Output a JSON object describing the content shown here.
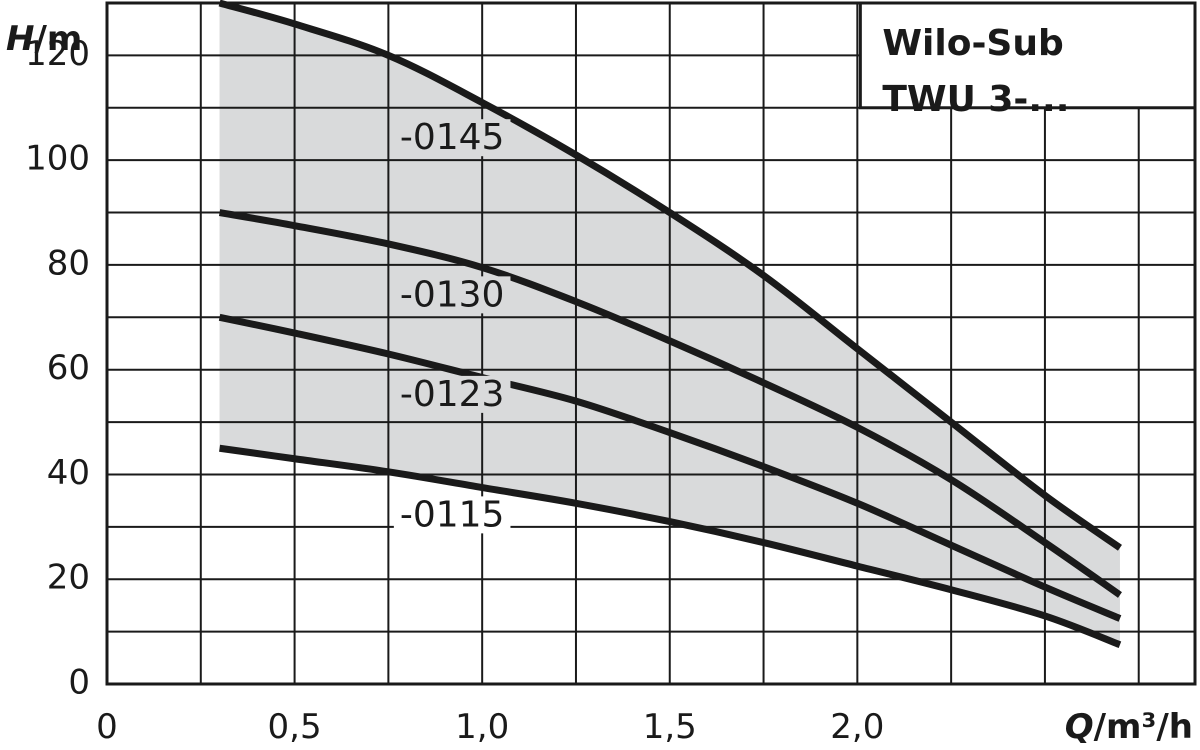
{
  "chart_data": {
    "type": "line",
    "title": [
      "Wilo-Sub",
      "TWU 3-..."
    ],
    "ylabel": {
      "symbol": "H",
      "unit": "/m"
    },
    "xlabel": {
      "symbol": "Q",
      "unit": "/m³/h"
    },
    "xlim": [
      0,
      2.9
    ],
    "ylim": [
      0,
      130
    ],
    "x_grid_step": 0.25,
    "y_grid_step": 10,
    "x_ticks": [
      {
        "value": 0,
        "label": "0"
      },
      {
        "value": 0.5,
        "label": "0,5"
      },
      {
        "value": 1.0,
        "label": "1,0"
      },
      {
        "value": 1.5,
        "label": "1,5"
      },
      {
        "value": 2.0,
        "label": "2,0"
      }
    ],
    "y_ticks": [
      {
        "value": 0,
        "label": "0"
      },
      {
        "value": 20,
        "label": "20"
      },
      {
        "value": 40,
        "label": "40"
      },
      {
        "value": 60,
        "label": "60"
      },
      {
        "value": 80,
        "label": "80"
      },
      {
        "value": 100,
        "label": "100"
      },
      {
        "value": 120,
        "label": "120"
      }
    ],
    "grid": true,
    "fill_between": [
      "-0145",
      "-0115"
    ],
    "fill_color": "#d9dadb",
    "line_color": "#1a1a1a",
    "series": [
      {
        "name": "-0145",
        "label_at": [
          0.92,
          104
        ],
        "x": [
          0.3,
          0.5,
          0.75,
          1.0,
          1.25,
          1.5,
          1.75,
          2.0,
          2.25,
          2.5,
          2.7
        ],
        "y": [
          130,
          126,
          120,
          111,
          101,
          90,
          78,
          64,
          50,
          36,
          26
        ]
      },
      {
        "name": "-0130",
        "label_at": [
          0.92,
          74
        ],
        "x": [
          0.3,
          0.5,
          0.75,
          1.0,
          1.25,
          1.5,
          1.75,
          2.0,
          2.25,
          2.5,
          2.7
        ],
        "y": [
          90,
          87.5,
          84,
          79.5,
          73,
          65.5,
          57.5,
          49,
          39,
          27,
          17
        ]
      },
      {
        "name": "-0123",
        "label_at": [
          0.92,
          55
        ],
        "x": [
          0.3,
          0.5,
          0.75,
          1.0,
          1.25,
          1.5,
          1.75,
          2.0,
          2.25,
          2.5,
          2.7
        ],
        "y": [
          70,
          67,
          63,
          58.5,
          54,
          48,
          41.5,
          34.5,
          26.5,
          18.5,
          12.5
        ]
      },
      {
        "name": "-0115",
        "label_at": [
          0.92,
          32
        ],
        "x": [
          0.3,
          0.5,
          0.75,
          1.0,
          1.25,
          1.5,
          1.75,
          2.0,
          2.25,
          2.5,
          2.7
        ],
        "y": [
          45,
          43,
          40.5,
          37.5,
          34.5,
          31,
          27,
          22.5,
          18,
          13,
          7.5
        ]
      }
    ]
  }
}
